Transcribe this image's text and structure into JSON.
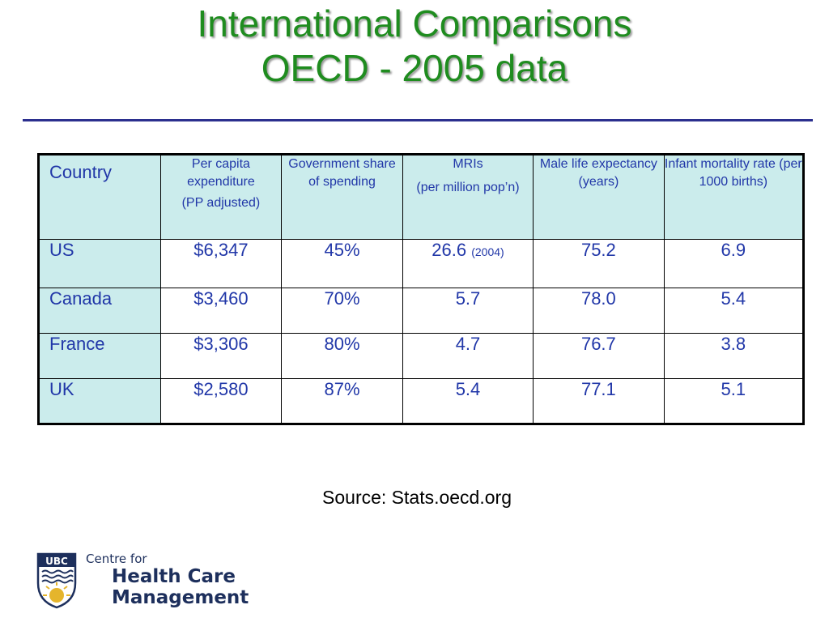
{
  "slide": {
    "title_line1": "International Comparisons",
    "title_line2": "OECD - 2005 data",
    "source": "Source: Stats.oecd.org"
  },
  "table": {
    "headers": {
      "country": "Country",
      "expenditure_l1": "Per capita expenditure",
      "expenditure_l2": "(PP adjusted)",
      "gov_share": "Government share of spending",
      "mri_l1": "MRIs",
      "mri_l2": "(per million pop’n)",
      "male_life": "Male life expectancy (years)",
      "infant_mortality": "Infant mortality rate (per 1000 births)"
    },
    "rows": [
      {
        "country": "US",
        "expenditure": "$6,347",
        "gov_share": "45%",
        "mri": "26.6",
        "mri_note": "(2004)",
        "male_life": "75.2",
        "infant_mortality": "6.9"
      },
      {
        "country": "Canada",
        "expenditure": "$3,460",
        "gov_share": "70%",
        "mri": "5.7",
        "male_life": "78.0",
        "infant_mortality": "5.4"
      },
      {
        "country": "France",
        "expenditure": "$3,306",
        "gov_share": "80%",
        "mri": "4.7",
        "male_life": "76.7",
        "infant_mortality": "3.8"
      },
      {
        "country": "UK",
        "expenditure": "$2,580",
        "gov_share": "87%",
        "mri": "5.4",
        "male_life": "77.1",
        "infant_mortality": "5.1"
      }
    ]
  },
  "logo": {
    "crest_text": "UBC",
    "line1": "Centre for",
    "line2": "Health Care",
    "line3": "Management"
  },
  "colors": {
    "title": "#1f8c1f",
    "table_text": "#2137a8",
    "header_fill": "#cbecec",
    "rule": "#2b2f8e"
  }
}
